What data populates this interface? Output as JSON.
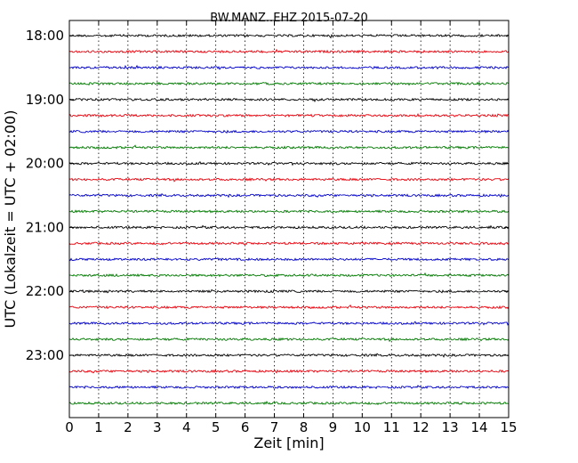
{
  "chart_data": {
    "type": "line",
    "title": "BW.MANZ..EHZ 2015-07-20",
    "xlabel": "Zeit  [min]",
    "ylabel": "UTC (Lokalzeit = UTC + 02:00)",
    "xlim": [
      0,
      15
    ],
    "x_ticks": [
      "0",
      "1",
      "2",
      "3",
      "4",
      "5",
      "6",
      "7",
      "8",
      "9",
      "10",
      "11",
      "12",
      "13",
      "14",
      "15"
    ],
    "y_ticks": [
      {
        "label": "18:00",
        "row": 0
      },
      {
        "label": "19:00",
        "row": 4
      },
      {
        "label": "20:00",
        "row": 8
      },
      {
        "label": "21:00",
        "row": 12
      },
      {
        "label": "22:00",
        "row": 16
      },
      {
        "label": "23:00",
        "row": 20
      }
    ],
    "row_interval_minutes": 15,
    "trace_rows": 24,
    "trace_colors": [
      "#000000",
      "#e8000b",
      "#0000c8",
      "#007a00"
    ],
    "grid": "vertical-dotted",
    "legend": "none"
  }
}
